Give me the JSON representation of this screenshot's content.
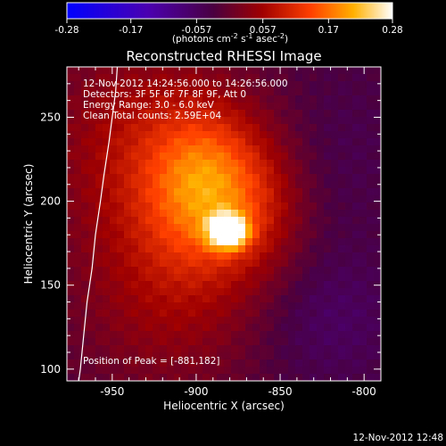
{
  "chart_data": {
    "type": "heatmap",
    "title": "Reconstructed RHESSI Image",
    "xlabel": "Heliocentric X (arcsec)",
    "ylabel": "Heliocentric Y (arcsec)",
    "xlim": [
      -977,
      -790
    ],
    "ylim": [
      93,
      280
    ],
    "x_ticks": [
      -950,
      -900,
      -850,
      -800
    ],
    "y_ticks": [
      100,
      150,
      200,
      250
    ],
    "colorbar": {
      "range": [
        -0.28,
        0.28
      ],
      "tick_values": [
        -0.28,
        -0.17,
        -0.057,
        0.057,
        0.17,
        0.28
      ],
      "tick_labels": [
        "-0.28",
        "-0.17",
        "-0.057",
        "0.057",
        "0.17",
        "0.28"
      ],
      "unit_parts": [
        "(photons cm",
        "-2",
        " s",
        "-1",
        " asec",
        "-2",
        ")"
      ]
    },
    "annotations": [
      "12-Nov-2012 14:24:56.000 to 14:26:56.000",
      "Detectors: 3F 5F 6F 7F 8F 9F, Att 0",
      "Energy Range: 3.0 - 6.0 keV",
      "Clean     Total counts: 2.59E+04"
    ],
    "peak_label": "Position of Peak = [-881,182]",
    "peak": {
      "x": -881,
      "y": 182
    },
    "limb_curve": [
      [
        -947,
        280
      ],
      [
        -948,
        265
      ],
      [
        -950,
        250
      ],
      [
        -952,
        235
      ],
      [
        -955,
        215
      ],
      [
        -957,
        200
      ],
      [
        -960,
        180
      ],
      [
        -962,
        160
      ],
      [
        -965,
        140
      ],
      [
        -967,
        120
      ],
      [
        -969,
        100
      ],
      [
        -970,
        93
      ]
    ],
    "sources": [
      {
        "x": -881,
        "y": 182,
        "sx": 8,
        "sy": 7,
        "amp": 0.27
      },
      {
        "x": -893,
        "y": 210,
        "sx": 24,
        "sy": 32,
        "amp": 0.15
      },
      {
        "x": -915,
        "y": 160,
        "sx": 40,
        "sy": 50,
        "amp": 0.08
      },
      {
        "x": -935,
        "y": 240,
        "sx": 38,
        "sy": 40,
        "amp": 0.07
      },
      {
        "x": -860,
        "y": 195,
        "sx": 20,
        "sy": 30,
        "amp": 0.05
      },
      {
        "x": -820,
        "y": 130,
        "sx": 30,
        "sy": 30,
        "amp": -0.04
      },
      {
        "x": -810,
        "y": 230,
        "sx": 25,
        "sy": 40,
        "amp": -0.02
      }
    ],
    "background": -0.02
  },
  "footer_timestamp": "12-Nov-2012 12:48"
}
